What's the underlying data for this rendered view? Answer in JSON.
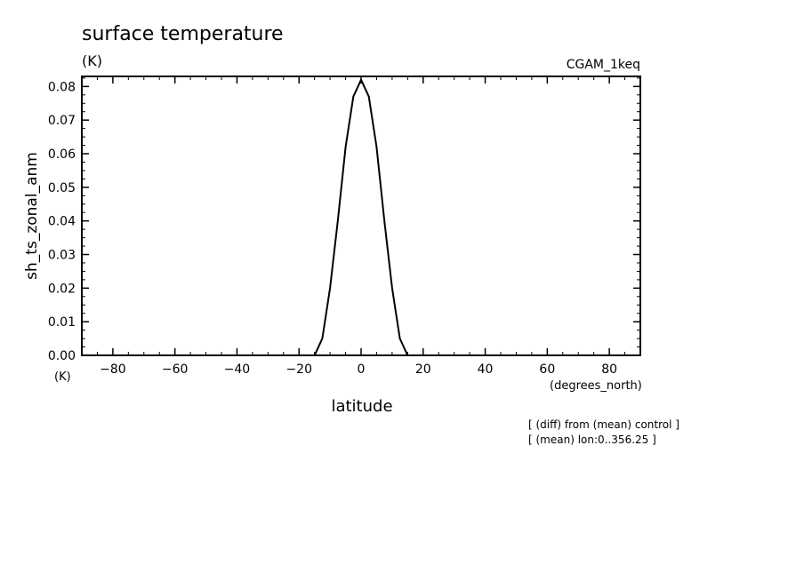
{
  "chart_data": {
    "type": "line",
    "title": "surface temperature",
    "title_units": "(K)",
    "run_label": "CGAM_1keq",
    "ylabel": "sh_ts_zonal_anm",
    "ylabel_units": "(K)",
    "xlabel": "latitude",
    "xlabel_units": "(degrees_north)",
    "xlim": [
      -90,
      90
    ],
    "ylim": [
      0,
      0.083
    ],
    "x_ticks": [
      -80,
      -60,
      -40,
      -20,
      0,
      20,
      40,
      60,
      80
    ],
    "x_tick_labels": [
      "−80",
      "−60",
      "−40",
      "−20",
      "0",
      "20",
      "40",
      "60",
      "80"
    ],
    "y_ticks": [
      0,
      0.01,
      0.02,
      0.03,
      0.04,
      0.05,
      0.06,
      0.07,
      0.08
    ],
    "y_tick_labels": [
      "0.00",
      "0.01",
      "0.02",
      "0.03",
      "0.04",
      "0.05",
      "0.06",
      "0.07",
      "0.08"
    ],
    "grid": false,
    "series": [
      {
        "x": [
          -90,
          -15,
          -12.5,
          -10,
          -7.5,
          -5,
          -2.5,
          0,
          2.5,
          5,
          7.5,
          10,
          12.5,
          15,
          90
        ],
        "values": [
          0,
          0,
          0.005,
          0.02,
          0.04,
          0.062,
          0.077,
          0.082,
          0.077,
          0.062,
          0.04,
          0.02,
          0.005,
          0,
          0
        ]
      }
    ],
    "annotations": [
      "[ (diff) from (mean) control ]",
      "[ (mean) lon:0..356.25 ]"
    ]
  }
}
